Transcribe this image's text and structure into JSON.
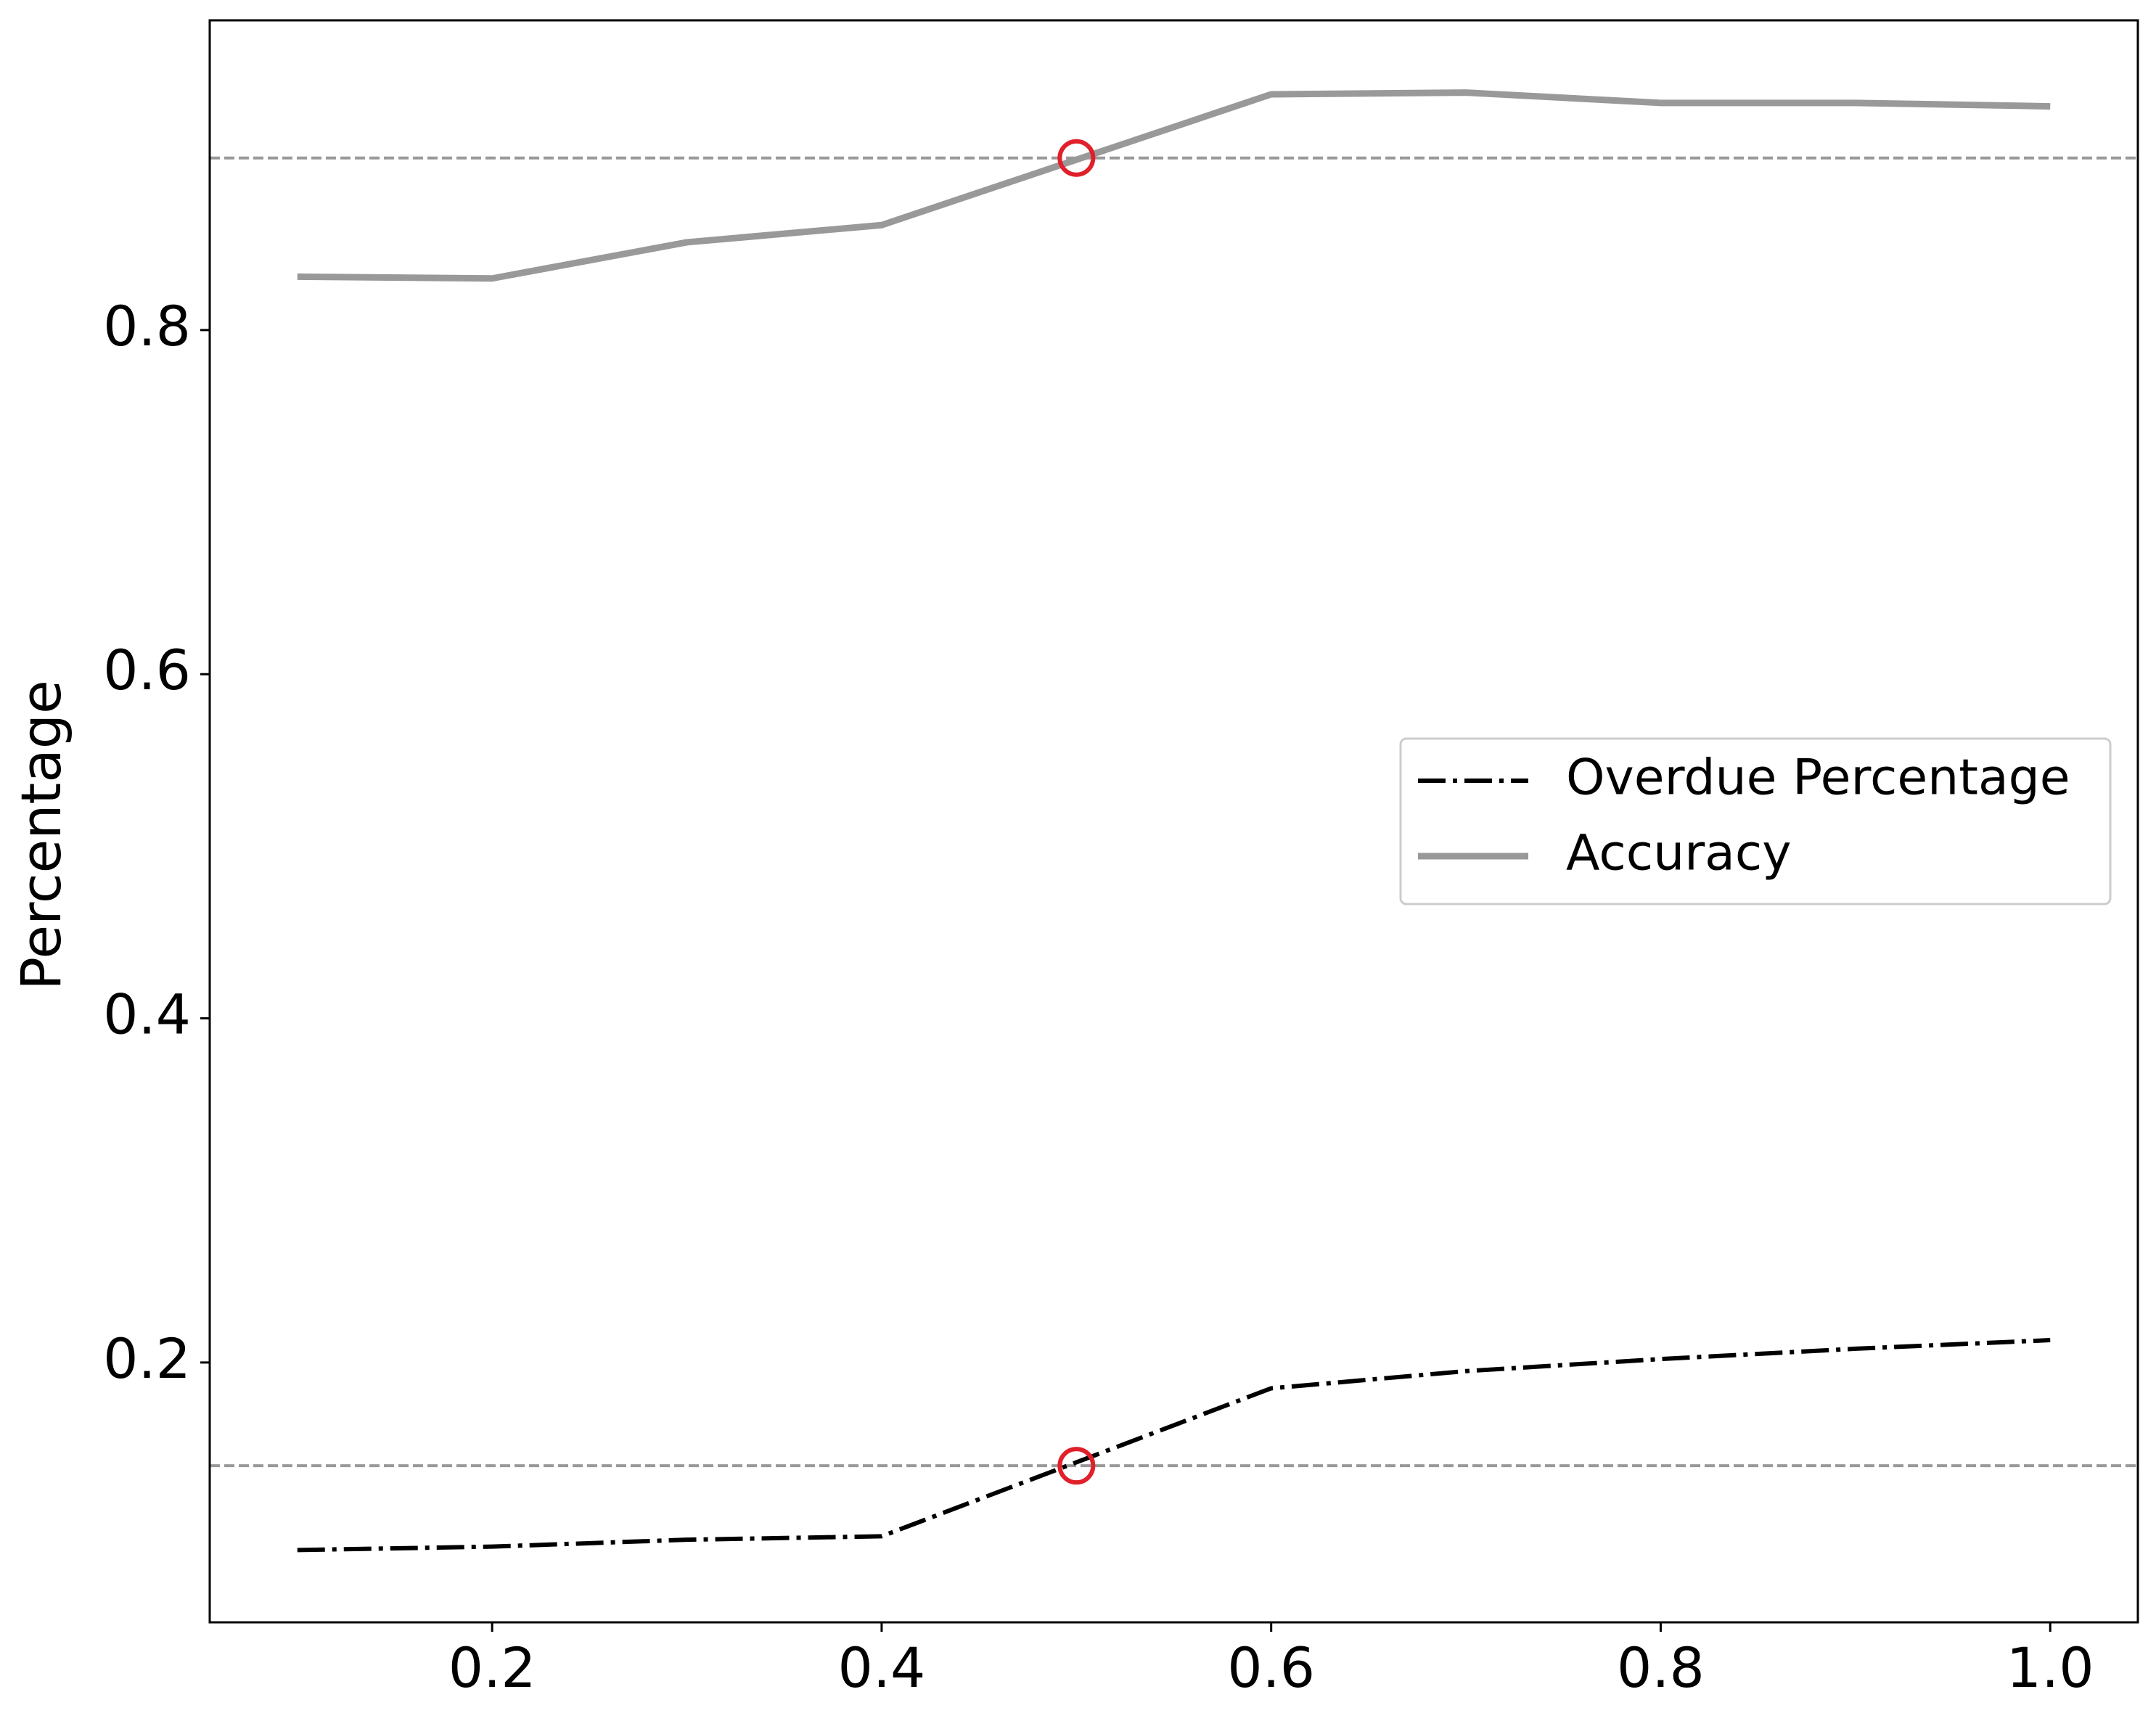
{
  "chart_data": {
    "type": "line",
    "ylabel": "Percentage",
    "x": [
      0.1,
      0.2,
      0.3,
      0.4,
      0.5,
      0.6,
      0.7,
      0.8,
      0.9,
      1.0
    ],
    "series": [
      {
        "name": "Overdue Percentage",
        "color": "#000000",
        "linestyle": "dashdot",
        "values": [
          0.091,
          0.093,
          0.097,
          0.099,
          0.142,
          0.185,
          0.195,
          0.202,
          0.208,
          0.213
        ]
      },
      {
        "name": "Accuracy",
        "color": "#999999",
        "linestyle": "solid",
        "values": [
          0.831,
          0.83,
          0.851,
          0.861,
          0.899,
          0.937,
          0.938,
          0.932,
          0.932,
          0.93
        ]
      }
    ],
    "hlines": [
      0.9,
      0.14
    ],
    "hline_color": "#999999",
    "markers": [
      {
        "x": 0.5,
        "y": 0.9
      },
      {
        "x": 0.5,
        "y": 0.14
      }
    ],
    "marker_color": "#e0202a",
    "xlim": [
      0.055,
      1.045
    ],
    "ylim": [
      0.049,
      0.98
    ],
    "xticks": [
      0.2,
      0.4,
      0.6,
      0.8,
      {
        "value": 1,
        "label": "1.0"
      }
    ],
    "yticks": [
      0.2,
      0.4,
      0.6,
      0.8
    ],
    "legend": "center right"
  }
}
